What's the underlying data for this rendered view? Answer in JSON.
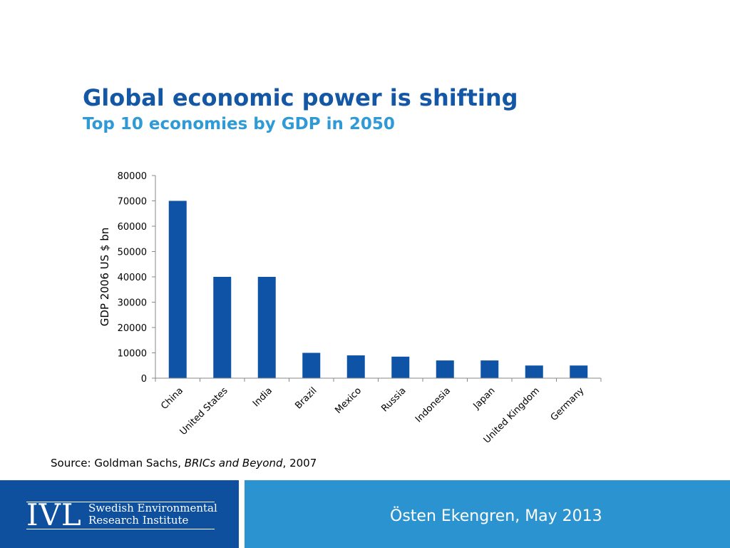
{
  "slide": {
    "title": "Global economic power is shifting",
    "subtitle": "Top 10 economies by GDP in 2050"
  },
  "source": {
    "prefix": "Source: Goldman Sachs, ",
    "italic": "BRICs and Beyond",
    "suffix": ", 2007"
  },
  "footer": {
    "logo": "IVL",
    "org_line1": "Swedish Environmental",
    "org_line2": "Research Institute",
    "author_date": "Östen Ekengren,  May 2013"
  },
  "colors": {
    "bar": "#0e53a5",
    "title": "#1458a5",
    "subtitle": "#2f9ad6",
    "footer_dark": "#0e4f9e",
    "footer_light": "#2b93cf"
  },
  "chart_data": {
    "type": "bar",
    "categories": [
      "China",
      "United States",
      "India",
      "Brazil",
      "Mexico",
      "Russia",
      "Indonesia",
      "Japan",
      "United Kingdom",
      "Germany"
    ],
    "values": [
      70000,
      40000,
      40000,
      10000,
      9000,
      8500,
      7000,
      7000,
      5000,
      5000
    ],
    "ylabel": "GDP 2006 US $ bn",
    "xlabel": "",
    "ylim": [
      0,
      80000
    ],
    "yticks": [
      0,
      10000,
      20000,
      30000,
      40000,
      50000,
      60000,
      70000,
      80000
    ],
    "grid": false,
    "legend": "none"
  }
}
